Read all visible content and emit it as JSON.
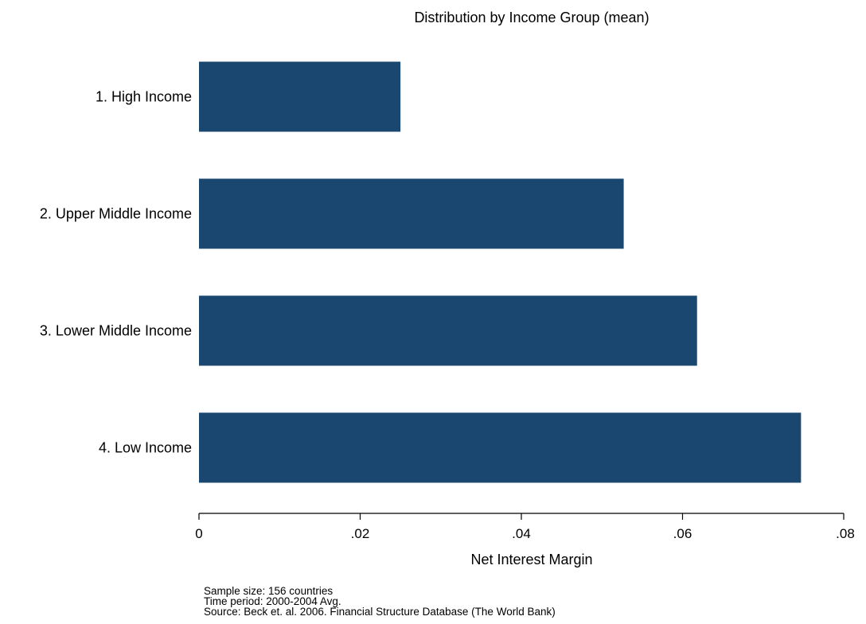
{
  "chart_data": {
    "type": "bar",
    "orientation": "horizontal",
    "title": "Distribution by Income Group (mean)",
    "xlabel": "Net Interest Margin",
    "ylabel": "",
    "categories": [
      "1. High Income",
      "2. Upper Middle Income",
      "3. Lower Middle Income",
      "4. Low Income"
    ],
    "values": [
      0.025,
      0.0527,
      0.0618,
      0.0747
    ],
    "xlim": [
      0,
      0.08
    ],
    "ticks": [
      {
        "value": 0,
        "label": "0"
      },
      {
        "value": 0.02,
        "label": ".02"
      },
      {
        "value": 0.04,
        "label": ".04"
      },
      {
        "value": 0.06,
        "label": ".06"
      },
      {
        "value": 0.08,
        "label": ".08"
      }
    ],
    "bar_color": "#1a476f",
    "grid": false,
    "legend": "none"
  },
  "notes": [
    "Sample size: 156 countries",
    "Time period: 2000-2004 Avg.",
    "Source: Beck et. al. 2006. Financial Structure Database (The World Bank)"
  ]
}
